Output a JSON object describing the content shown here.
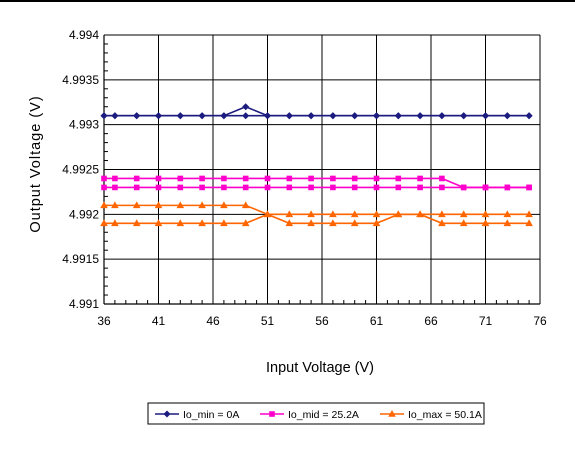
{
  "chart_data": {
    "type": "line",
    "title": "",
    "xlabel": "Input Voltage (V)",
    "ylabel": "Output Voltage (V)",
    "xlim": [
      36,
      76
    ],
    "ylim": [
      4.991,
      4.994
    ],
    "x_ticks": [
      "36",
      "41",
      "46",
      "51",
      "56",
      "61",
      "66",
      "71",
      "76"
    ],
    "y_ticks": [
      "4.991",
      "4.9915",
      "4.992",
      "4.9925",
      "4.993",
      "4.9935",
      "4.994"
    ],
    "grid": true,
    "legend_position": "bottom",
    "x": [
      36,
      37,
      39,
      41,
      43,
      45,
      47,
      49,
      51,
      53,
      55,
      57,
      59,
      61,
      63,
      65,
      67,
      69,
      71,
      73,
      75
    ],
    "series": [
      {
        "name": "Io_min = 0A",
        "color": "#1c1c80",
        "marker": "diamond",
        "values": [
          4.9931,
          4.9931,
          4.9931,
          4.9931,
          4.9931,
          4.9931,
          4.9931,
          4.9932,
          4.9931,
          4.9931,
          4.9931,
          4.9931,
          4.9931,
          4.9931,
          4.9931,
          4.9931,
          4.9931,
          4.9931,
          4.9931,
          4.9931,
          4.9931
        ],
        "values2": [
          4.9931,
          4.9931,
          4.9931,
          4.9931,
          4.9931,
          4.9931,
          4.9931,
          4.9931,
          4.9931,
          4.9931,
          4.9931,
          4.9931,
          4.9931,
          4.9931,
          4.9931,
          4.9931,
          4.9931,
          4.9931,
          4.9931,
          4.9931,
          4.9931
        ]
      },
      {
        "name": "Io_mid = 25.2A",
        "color": "#ff00cc",
        "marker": "square",
        "values": [
          4.9924,
          4.9924,
          4.9924,
          4.9924,
          4.9924,
          4.9924,
          4.9924,
          4.9924,
          4.9924,
          4.9924,
          4.9924,
          4.9924,
          4.9924,
          4.9924,
          4.9924,
          4.9924,
          4.9924,
          4.9923,
          4.9923,
          4.9923,
          4.9923
        ],
        "values2": [
          4.9923,
          4.9923,
          4.9923,
          4.9923,
          4.9923,
          4.9923,
          4.9923,
          4.9923,
          4.9923,
          4.9923,
          4.9923,
          4.9923,
          4.9923,
          4.9923,
          4.9923,
          4.9923,
          4.9923,
          4.9923,
          4.9923,
          4.9923,
          4.9923
        ]
      },
      {
        "name": "Io_max = 50.1A",
        "color": "#ff6600",
        "marker": "triangle",
        "values": [
          4.9921,
          4.9921,
          4.9921,
          4.9921,
          4.9921,
          4.9921,
          4.9921,
          4.9921,
          4.992,
          4.992,
          4.992,
          4.992,
          4.992,
          4.992,
          4.992,
          4.992,
          4.992,
          4.992,
          4.992,
          4.992,
          4.992
        ],
        "values2": [
          4.9919,
          4.9919,
          4.9919,
          4.9919,
          4.9919,
          4.9919,
          4.9919,
          4.9919,
          4.992,
          4.9919,
          4.9919,
          4.9919,
          4.9919,
          4.9919,
          4.992,
          4.992,
          4.9919,
          4.9919,
          4.9919,
          4.9919,
          4.9919
        ]
      }
    ]
  }
}
